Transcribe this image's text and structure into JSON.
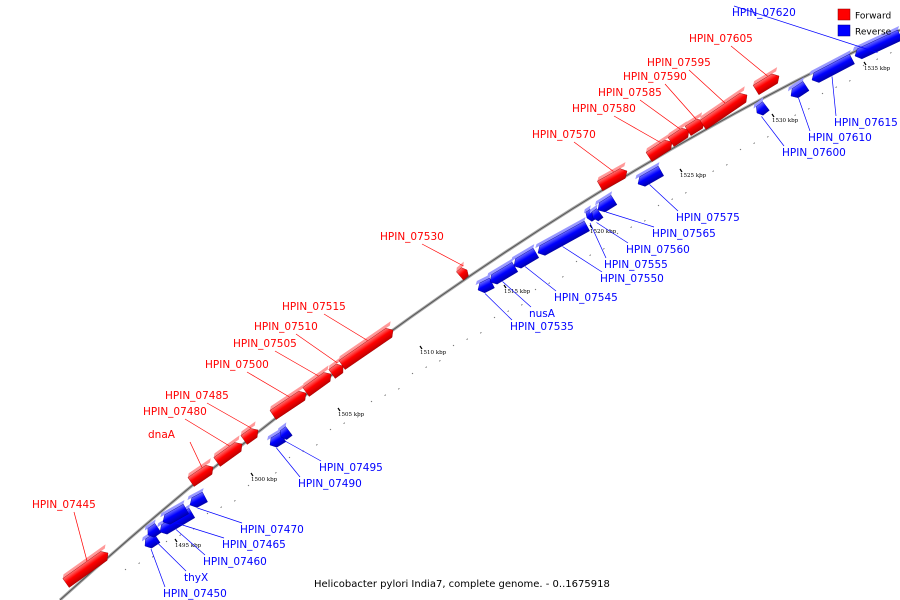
{
  "caption": "Helicobacter pylori India7, complete genome. - 0..1675918",
  "legend": [
    {
      "label": "Forward",
      "color": "#ff0000"
    },
    {
      "label": "Reverse",
      "color": "#0000ff"
    }
  ],
  "colors": {
    "forward": "#ff0000",
    "reverse": "#0000ff",
    "backbone": "#999999"
  },
  "ticks": [
    "1495 kbp",
    "1500 kbp",
    "1505 kbp",
    "1510 kbp",
    "1515 kbp",
    "1520 kbp",
    "1525 kbp",
    "1530 kbp",
    "1535 kbp"
  ],
  "genes": [
    {
      "label": "HPIN_07445",
      "strand": "forward"
    },
    {
      "label": "HPIN_07450",
      "strand": "reverse"
    },
    {
      "label": "thyX",
      "strand": "reverse"
    },
    {
      "label": "HPIN_07460",
      "strand": "reverse"
    },
    {
      "label": "HPIN_07465",
      "strand": "reverse"
    },
    {
      "label": "HPIN_07470",
      "strand": "reverse"
    },
    {
      "label": "dnaA",
      "strand": "forward"
    },
    {
      "label": "HPIN_07480",
      "strand": "forward"
    },
    {
      "label": "HPIN_07485",
      "strand": "forward"
    },
    {
      "label": "HPIN_07490",
      "strand": "reverse"
    },
    {
      "label": "HPIN_07495",
      "strand": "reverse"
    },
    {
      "label": "HPIN_07500",
      "strand": "forward"
    },
    {
      "label": "HPIN_07505",
      "strand": "forward"
    },
    {
      "label": "HPIN_07510",
      "strand": "forward"
    },
    {
      "label": "HPIN_07515",
      "strand": "forward"
    },
    {
      "label": "HPIN_07530",
      "strand": "forward"
    },
    {
      "label": "HPIN_07535",
      "strand": "reverse"
    },
    {
      "label": "nusA",
      "strand": "reverse"
    },
    {
      "label": "HPIN_07545",
      "strand": "reverse"
    },
    {
      "label": "HPIN_07550",
      "strand": "reverse"
    },
    {
      "label": "HPIN_07555",
      "strand": "reverse"
    },
    {
      "label": "HPIN_07560",
      "strand": "reverse"
    },
    {
      "label": "HPIN_07565",
      "strand": "reverse"
    },
    {
      "label": "HPIN_07570",
      "strand": "forward"
    },
    {
      "label": "HPIN_07575",
      "strand": "reverse"
    },
    {
      "label": "HPIN_07580",
      "strand": "forward"
    },
    {
      "label": "HPIN_07585",
      "strand": "forward"
    },
    {
      "label": "HPIN_07590",
      "strand": "forward"
    },
    {
      "label": "HPIN_07595",
      "strand": "forward"
    },
    {
      "label": "HPIN_07600",
      "strand": "reverse"
    },
    {
      "label": "HPIN_07605",
      "strand": "forward"
    },
    {
      "label": "HPIN_07610",
      "strand": "reverse"
    },
    {
      "label": "HPIN_07615",
      "strand": "reverse"
    },
    {
      "label": "HPIN_07620",
      "strand": "reverse"
    }
  ]
}
